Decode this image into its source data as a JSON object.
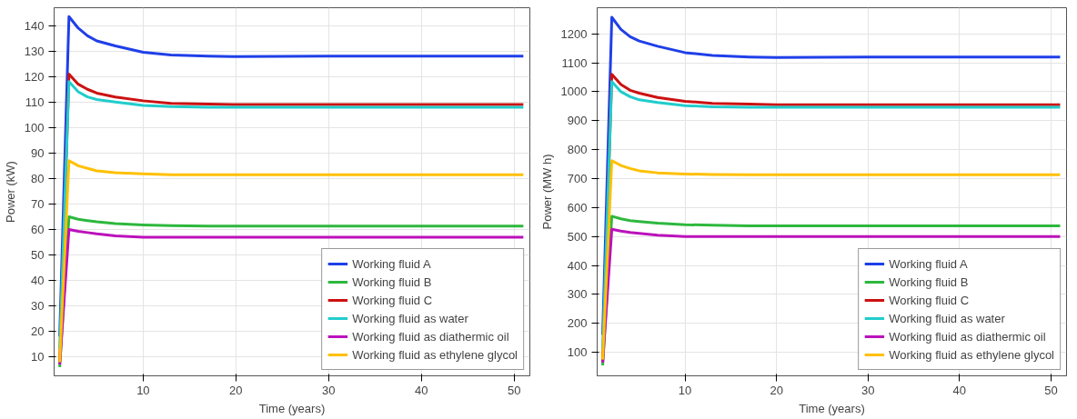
{
  "chart_data": [
    {
      "type": "line",
      "xlabel": "Time (years)",
      "ylabel": "Power (kW)",
      "xlim": [
        0.4,
        51.7
      ],
      "ylim": [
        2.6,
        147
      ],
      "xticks": [
        10,
        20,
        30,
        40,
        50
      ],
      "yticks": [
        10,
        20,
        30,
        40,
        50,
        60,
        70,
        80,
        90,
        100,
        110,
        120,
        130,
        140
      ],
      "grid": true,
      "legend": "bottom right",
      "x": [
        1,
        2,
        3,
        4,
        5,
        7,
        10,
        13,
        17,
        20,
        30,
        40,
        51
      ],
      "series": [
        {
          "name": "Working fluid A",
          "color": "#1f3fe8",
          "values": [
            18,
            143.5,
            139,
            136,
            134,
            132,
            129.5,
            128.5,
            128,
            127.8,
            128,
            128,
            128
          ]
        },
        {
          "name": "Working fluid B",
          "color": "#2db83d",
          "values": [
            6,
            65,
            64,
            63.5,
            63,
            62.3,
            61.8,
            61.5,
            61.3,
            61.3,
            61.3,
            61.3,
            61.3
          ]
        },
        {
          "name": "Working fluid C",
          "color": "#cc1111",
          "values": [
            8,
            121,
            117,
            115,
            113.5,
            112,
            110.5,
            109.5,
            109.2,
            109,
            109,
            109,
            109
          ]
        },
        {
          "name": "Working fluid as water",
          "color": "#22cccc",
          "values": [
            13,
            118,
            114,
            112,
            111,
            110,
            108.7,
            108.2,
            108,
            108,
            108,
            108,
            108
          ]
        },
        {
          "name": "Working fluid as diathermic oil",
          "color": "#bb11bb",
          "values": [
            7,
            60,
            59.3,
            58.8,
            58.3,
            57.5,
            57,
            57,
            57,
            57,
            57,
            57,
            57
          ]
        },
        {
          "name": "Working fluid as ethylene glycol",
          "color": "#ffc000",
          "values": [
            8,
            87,
            85,
            84,
            83,
            82.3,
            81.8,
            81.5,
            81.5,
            81.5,
            81.5,
            81.5,
            81.5
          ]
        }
      ]
    },
    {
      "type": "line",
      "xlabel": "Time (years)",
      "ylabel": "Power (MW h)",
      "xlim": [
        0.4,
        51.7
      ],
      "ylim": [
        19,
        1290
      ],
      "xticks": [
        10,
        20,
        30,
        40,
        50
      ],
      "yticks": [
        100,
        200,
        300,
        400,
        500,
        600,
        700,
        800,
        900,
        1000,
        1100,
        1200
      ],
      "grid": true,
      "legend": "bottom right",
      "x": [
        1,
        2,
        3,
        4,
        5,
        7,
        10,
        13,
        17,
        20,
        30,
        40,
        51
      ],
      "series": [
        {
          "name": "Working fluid A",
          "color": "#1f3fe8",
          "values": [
            160,
            1257,
            1215,
            1190,
            1175,
            1157,
            1135,
            1125,
            1120,
            1118,
            1120,
            1120,
            1120
          ]
        },
        {
          "name": "Working fluid B",
          "color": "#2db83d",
          "values": [
            55,
            570,
            561,
            555,
            552,
            546,
            541,
            539,
            537,
            537,
            537,
            537,
            537
          ]
        },
        {
          "name": "Working fluid C",
          "color": "#cc1111",
          "values": [
            70,
            1060,
            1025,
            1005,
            995,
            980,
            967,
            960,
            957,
            955,
            955,
            955,
            955
          ]
        },
        {
          "name": "Working fluid as water",
          "color": "#22cccc",
          "values": [
            110,
            1035,
            1000,
            983,
            972,
            963,
            952,
            948,
            946,
            946,
            946,
            946,
            946
          ]
        },
        {
          "name": "Working fluid as diathermic oil",
          "color": "#bb11bb",
          "values": [
            65,
            525,
            519,
            514,
            511,
            505,
            500,
            500,
            500,
            500,
            500,
            500,
            500
          ]
        },
        {
          "name": "Working fluid as ethylene glycol",
          "color": "#ffc000",
          "values": [
            75,
            762,
            745,
            735,
            727,
            720,
            716,
            714,
            713,
            713,
            713,
            713,
            713
          ]
        }
      ]
    }
  ]
}
